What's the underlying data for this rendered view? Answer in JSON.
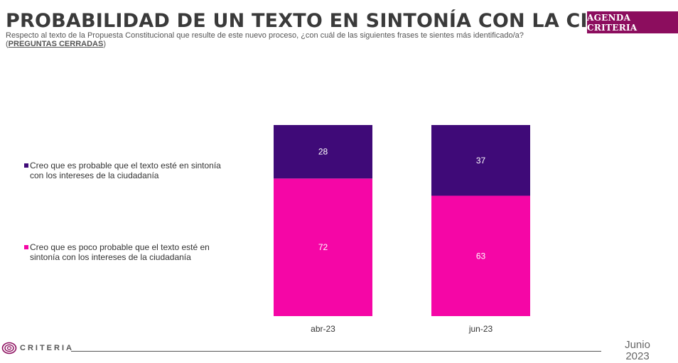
{
  "header": {
    "title": "PROBABILIDAD DE UN TEXTO EN SINTONÍA CON LA CIUDADANÍA",
    "subtitle_main": "Respecto al texto de la Propuesta Constitucional que resulte de este nuevo proceso, ¿con cuál de las siguientes frases te sientes más identificado/a? (",
    "subtitle_tag": "PREGUNTAS CERRADAS",
    "subtitle_end": ")",
    "badge": "AGENDA CRITERIA"
  },
  "legend": [
    {
      "label": "Creo que es probable que el texto esté en sintonía con los intereses de la ciudadanía",
      "color": "#3f0a78"
    },
    {
      "label": "Creo que es poco probable que el texto esté en sintonía con los intereses de la ciudadanía",
      "color": "#f506a6"
    }
  ],
  "chart_data": {
    "type": "bar",
    "stacked": true,
    "categories": [
      "abr-23",
      "jun-23"
    ],
    "series": [
      {
        "name": "Creo que es poco probable que el texto esté en sintonía con los intereses de la ciudadanía",
        "values": [
          72,
          63
        ],
        "color": "#f506a6"
      },
      {
        "name": "Creo que es probable que el texto esté en sintonía con los intereses de la ciudadanía",
        "values": [
          28,
          37
        ],
        "color": "#3f0a78"
      }
    ],
    "ylim": [
      0,
      100
    ],
    "legend_position": "left",
    "grid": false
  },
  "footer": {
    "logo_text": "CRITERIA",
    "date_month": "Junio",
    "date_year": "2023"
  }
}
